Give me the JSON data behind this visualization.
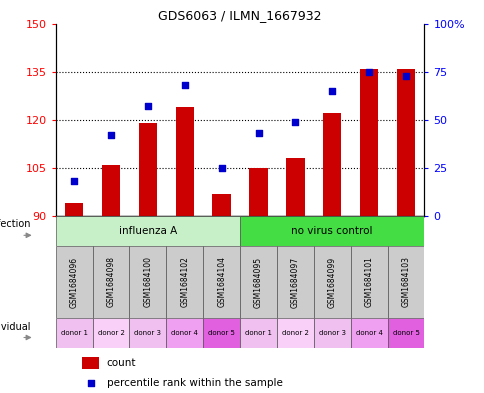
{
  "title": "GDS6063 / ILMN_1667932",
  "samples": [
    "GSM1684096",
    "GSM1684098",
    "GSM1684100",
    "GSM1684102",
    "GSM1684104",
    "GSM1684095",
    "GSM1684097",
    "GSM1684099",
    "GSM1684101",
    "GSM1684103"
  ],
  "counts": [
    94,
    106,
    119,
    124,
    97,
    105,
    108,
    122,
    136,
    136
  ],
  "percentiles": [
    18,
    42,
    57,
    68,
    25,
    43,
    49,
    65,
    75,
    73
  ],
  "ylim_left": [
    90,
    150
  ],
  "ylim_right": [
    0,
    100
  ],
  "yticks_left": [
    90,
    105,
    120,
    135,
    150
  ],
  "yticks_right": [
    0,
    25,
    50,
    75,
    100
  ],
  "infection_groups": [
    {
      "label": "influenza A",
      "start": 0,
      "end": 5,
      "color": "#c8f0c8"
    },
    {
      "label": "no virus control",
      "start": 5,
      "end": 10,
      "color": "#44dd44"
    }
  ],
  "individual_labels": [
    "donor 1",
    "donor 2",
    "donor 3",
    "donor 4",
    "donor 5",
    "donor 1",
    "donor 2",
    "donor 3",
    "donor 4",
    "donor 5"
  ],
  "individual_colors": [
    "#f0c0f0",
    "#f8d0f8",
    "#f0c0f0",
    "#f0a0f0",
    "#e060e0",
    "#f0c0f0",
    "#f8d0f8",
    "#f0c0f0",
    "#f0a0f0",
    "#e060e0"
  ],
  "bar_color": "#cc0000",
  "dot_color": "#0000cc",
  "bar_bottom": 90,
  "label_row1": "infection",
  "label_row2": "individual",
  "legend_count": "count",
  "legend_percentile": "percentile rank within the sample"
}
